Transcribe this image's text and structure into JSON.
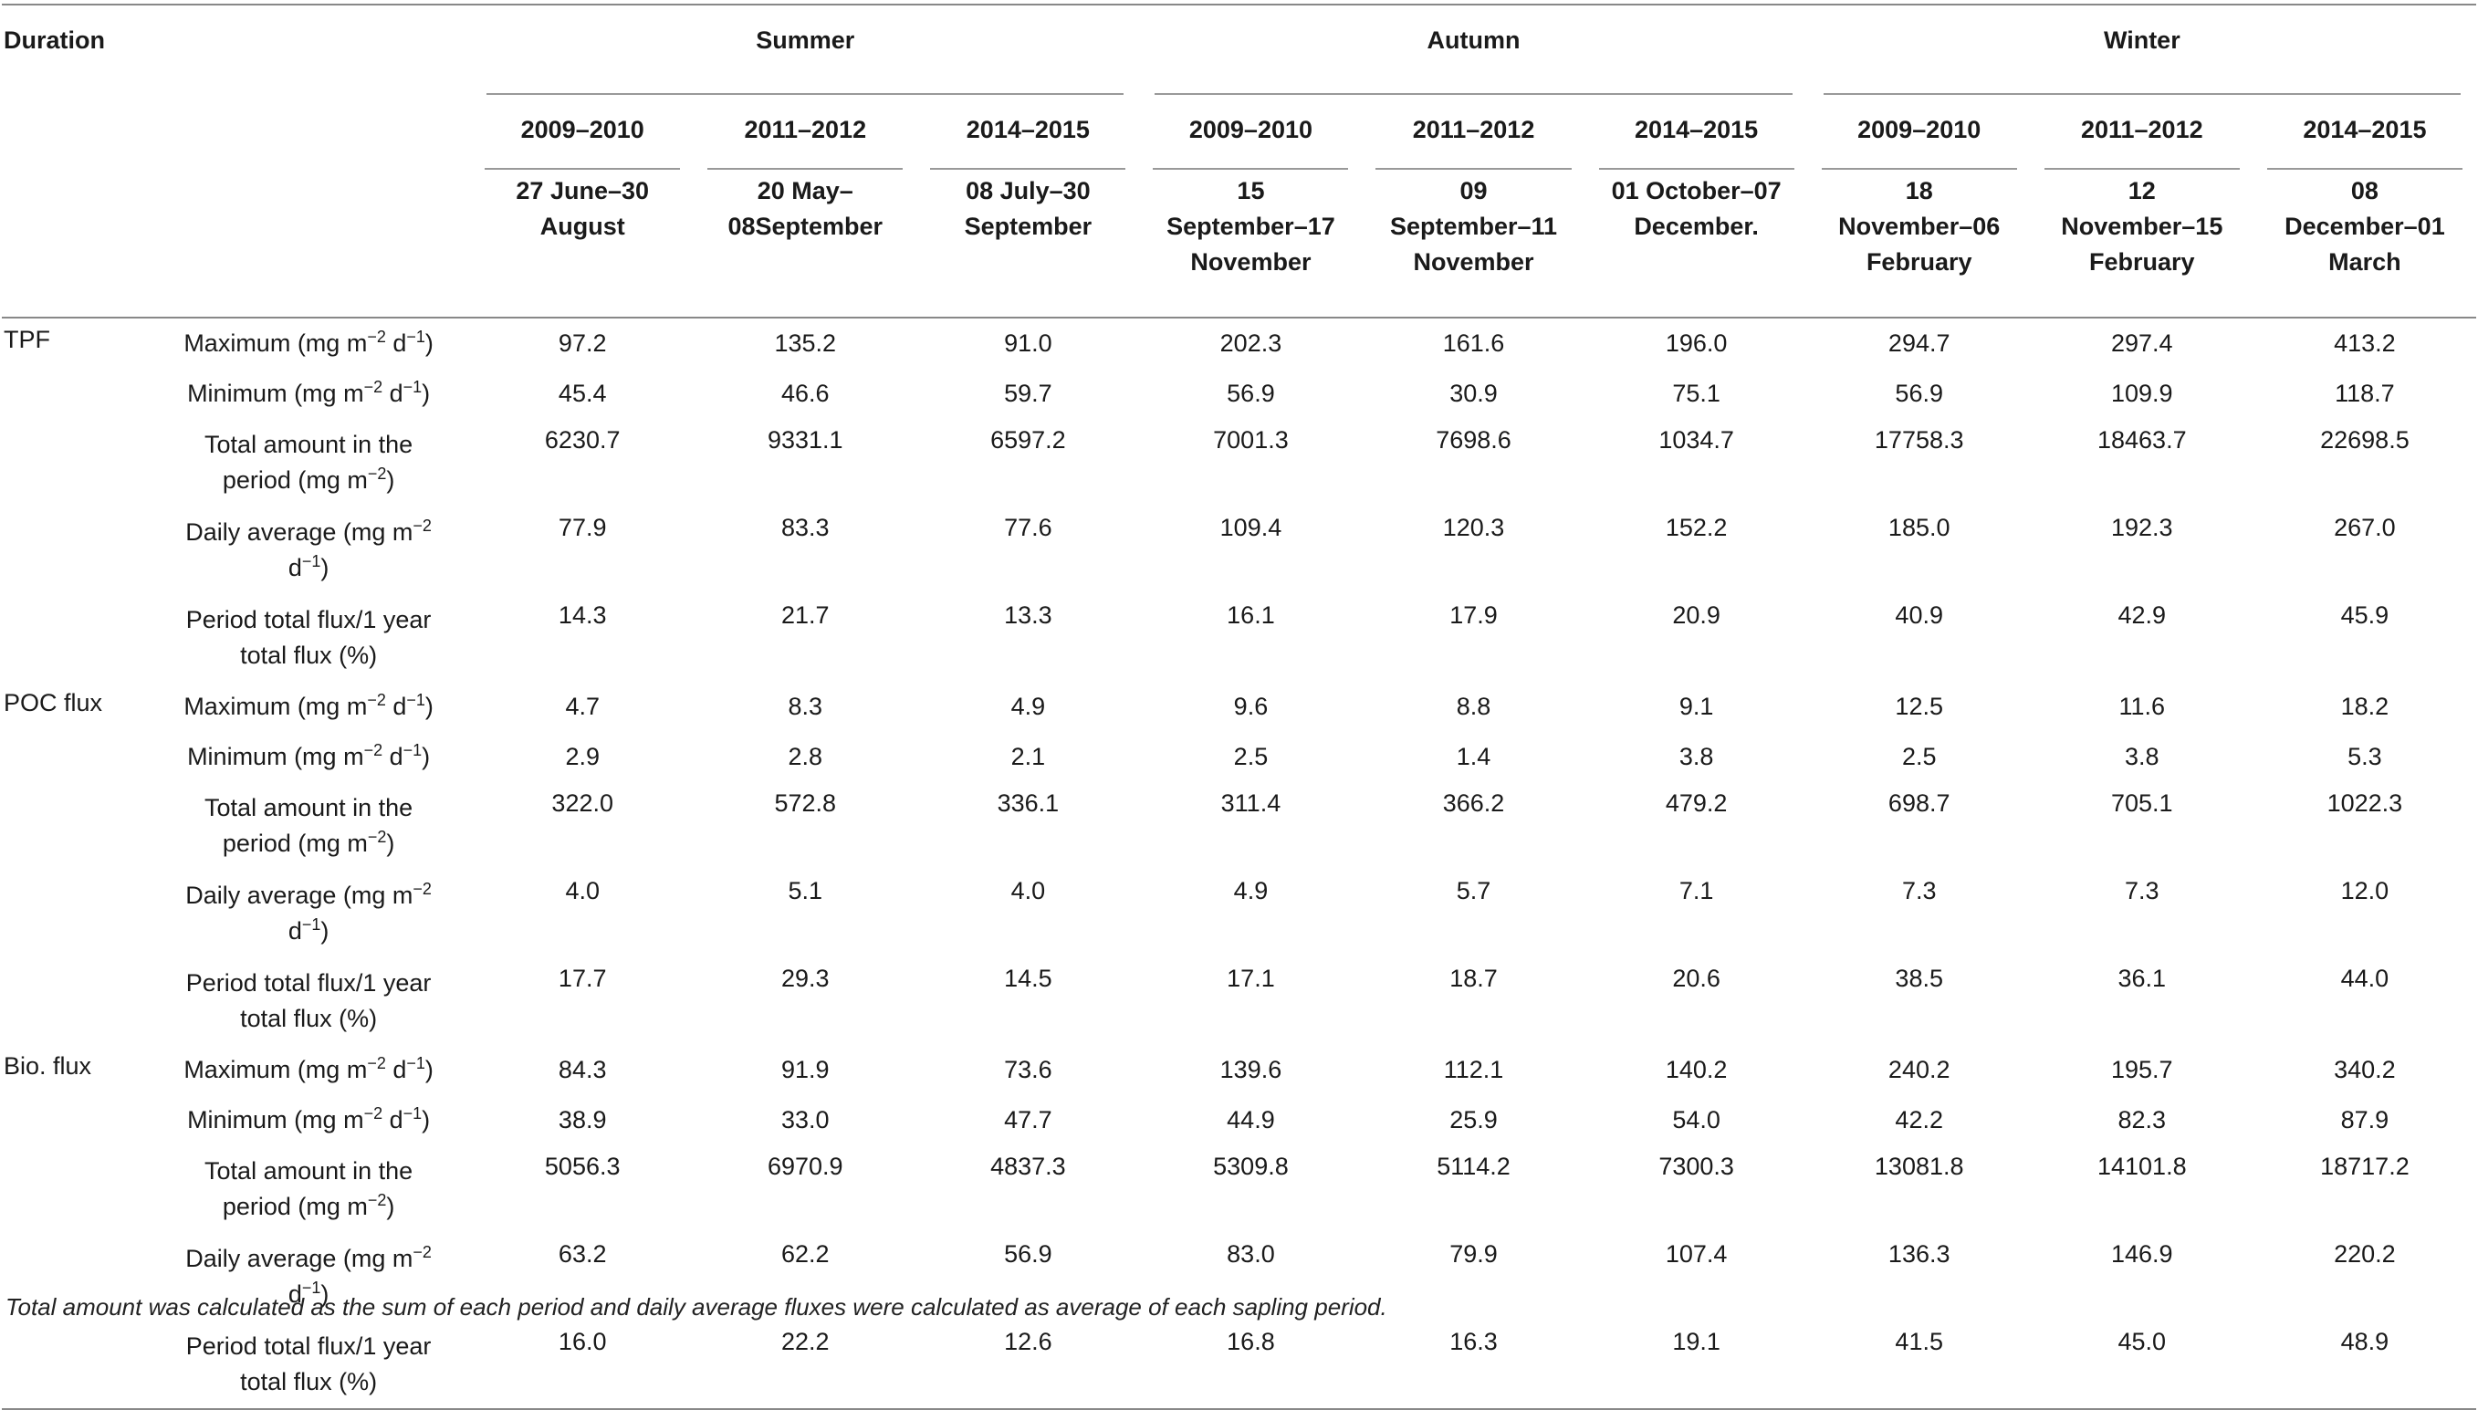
{
  "header": {
    "duration_label": "Duration",
    "seasons": [
      "Summer",
      "Autumn",
      "Winter"
    ],
    "years": [
      "2009–2010",
      "2011–2012",
      "2014–2015",
      "2009–2010",
      "2011–2012",
      "2014–2015",
      "2009–2010",
      "2011–2012",
      "2014–2015"
    ],
    "dates": [
      [
        "27 June–30",
        "August"
      ],
      [
        "20 May–",
        "08September"
      ],
      [
        "08 July–30",
        "September"
      ],
      [
        "15",
        "September–17",
        "November"
      ],
      [
        "09",
        "September–11",
        "November"
      ],
      [
        "01 October–07",
        "December."
      ],
      [
        "18",
        "November–06",
        "February"
      ],
      [
        "12",
        "November–15",
        "February"
      ],
      [
        "08",
        "December–01",
        "March"
      ]
    ]
  },
  "groups": [
    {
      "label": "TPF",
      "rows": [
        {
          "metric": [
            "Maximum (mg m",
            "−2",
            " d",
            "−1",
            ")"
          ],
          "values": [
            "97.2",
            "135.2",
            "91.0",
            "202.3",
            "161.6",
            "196.0",
            "294.7",
            "297.4",
            "413.2"
          ]
        },
        {
          "metric": [
            "Minimum (mg m",
            "−2",
            " d",
            "−1",
            ")"
          ],
          "values": [
            "45.4",
            "46.6",
            "59.7",
            "56.9",
            "30.9",
            "75.1",
            "56.9",
            "109.9",
            "118.7"
          ]
        },
        {
          "metric": [
            "Total amount in the",
            "period (mg m",
            "−2",
            ")"
          ],
          "values": [
            "6230.7",
            "9331.1",
            "6597.2",
            "7001.3",
            "7698.6",
            "1034.7",
            "17758.3",
            "18463.7",
            "22698.5"
          ]
        },
        {
          "metric": [
            "Daily average (mg m",
            "−2",
            "d",
            "−1",
            ")"
          ],
          "values": [
            "77.9",
            "83.3",
            "77.6",
            "109.4",
            "120.3",
            "152.2",
            "185.0",
            "192.3",
            "267.0"
          ]
        },
        {
          "metric": [
            "Period total flux/1 year",
            "total flux (%)"
          ],
          "values": [
            "14.3",
            "21.7",
            "13.3",
            "16.1",
            "17.9",
            "20.9",
            "40.9",
            "42.9",
            "45.9"
          ]
        }
      ]
    },
    {
      "label": "POC flux",
      "rows": [
        {
          "metric": [
            "Maximum (mg m",
            "−2",
            " d",
            "−1",
            ")"
          ],
          "values": [
            "4.7",
            "8.3",
            "4.9",
            "9.6",
            "8.8",
            "9.1",
            "12.5",
            "11.6",
            "18.2"
          ]
        },
        {
          "metric": [
            "Minimum (mg m",
            "−2",
            " d",
            "−1",
            ")"
          ],
          "values": [
            "2.9",
            "2.8",
            "2.1",
            "2.5",
            "1.4",
            "3.8",
            "2.5",
            "3.8",
            "5.3"
          ]
        },
        {
          "metric": [
            "Total amount in the",
            "period (mg m",
            "−2",
            ")"
          ],
          "values": [
            "322.0",
            "572.8",
            "336.1",
            "311.4",
            "366.2",
            "479.2",
            "698.7",
            "705.1",
            "1022.3"
          ]
        },
        {
          "metric": [
            "Daily average (mg m",
            "−2",
            "d",
            "−1",
            ")"
          ],
          "values": [
            "4.0",
            "5.1",
            "4.0",
            "4.9",
            "5.7",
            "7.1",
            "7.3",
            "7.3",
            "12.0"
          ]
        },
        {
          "metric": [
            "Period total flux/1 year",
            "total flux (%)"
          ],
          "values": [
            "17.7",
            "29.3",
            "14.5",
            "17.1",
            "18.7",
            "20.6",
            "38.5",
            "36.1",
            "44.0"
          ]
        }
      ]
    },
    {
      "label": "Bio. flux",
      "rows": [
        {
          "metric": [
            "Maximum (mg m",
            "−2",
            " d",
            "−1",
            ")"
          ],
          "values": [
            "84.3",
            "91.9",
            "73.6",
            "139.6",
            "112.1",
            "140.2",
            "240.2",
            "195.7",
            "340.2"
          ]
        },
        {
          "metric": [
            "Minimum (mg m",
            "−2",
            " d",
            "−1",
            ")"
          ],
          "values": [
            "38.9",
            "33.0",
            "47.7",
            "44.9",
            "25.9",
            "54.0",
            "42.2",
            "82.3",
            "87.9"
          ]
        },
        {
          "metric": [
            "Total amount in the",
            "period (mg m",
            "−2",
            ")"
          ],
          "values": [
            "5056.3",
            "6970.9",
            "4837.3",
            "5309.8",
            "5114.2",
            "7300.3",
            "13081.8",
            "14101.8",
            "18717.2"
          ]
        },
        {
          "metric": [
            "Daily average (mg m",
            "−2",
            "d",
            "−1",
            ")"
          ],
          "values": [
            "63.2",
            "62.2",
            "56.9",
            "83.0",
            "79.9",
            "107.4",
            "136.3",
            "146.9",
            "220.2"
          ]
        },
        {
          "metric": [
            "Period total flux/1 year",
            "total flux (%)"
          ],
          "values": [
            "16.0",
            "22.2",
            "12.6",
            "16.8",
            "16.3",
            "19.1",
            "41.5",
            "45.0",
            "48.9"
          ]
        }
      ]
    }
  ],
  "footnote": "Total amount was calculated as the sum of each period and daily average fluxes were calculated as average of each sapling period."
}
